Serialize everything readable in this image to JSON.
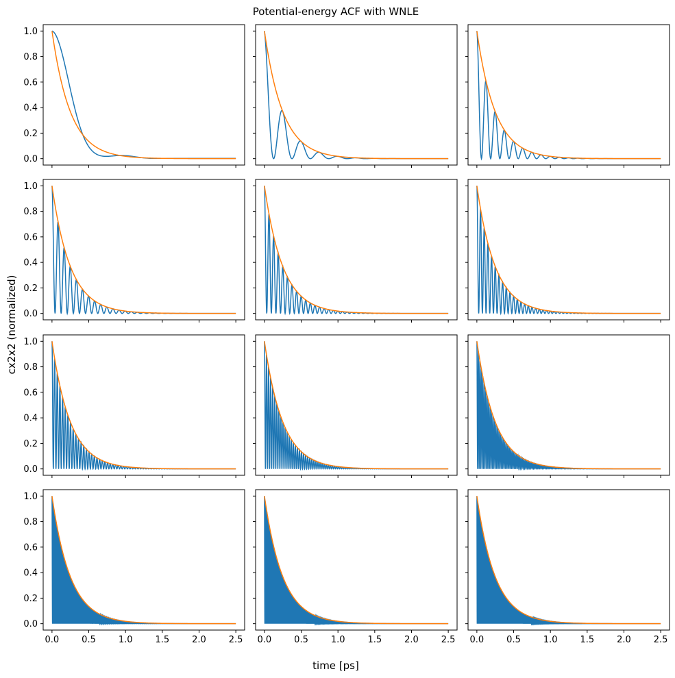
{
  "title": "Potential-energy ACF with WNLE",
  "xlabel": "time [ps]",
  "ylabel": "cx2x2 (normalized)",
  "colors": {
    "series1": "#1f77b4",
    "series2": "#ff7f0e"
  },
  "chart_data": {
    "type": "line",
    "layout": {
      "rows": 4,
      "cols": 3,
      "sharex": true,
      "sharey": true
    },
    "xlim": [
      -0.12,
      2.62
    ],
    "ylim": [
      -0.05,
      1.05
    ],
    "xticks": [
      0.0,
      0.5,
      1.0,
      1.5,
      2.0,
      2.5
    ],
    "xtick_labels": [
      "0.0",
      "0.5",
      "1.0",
      "1.5",
      "2.0",
      "2.5"
    ],
    "yticks": [
      0.0,
      0.2,
      0.4,
      0.6,
      0.8,
      1.0
    ],
    "ytick_labels": [
      "0.0",
      "0.2",
      "0.4",
      "0.6",
      "0.8",
      "1.0"
    ],
    "x_range": [
      0.0,
      2.5
    ],
    "grid": false,
    "legend": "none",
    "series_envelope": {
      "decay_time_ps": 0.25,
      "formula": "exp(-t/0.25)"
    },
    "subplots": [
      {
        "row": 0,
        "col": 0,
        "oscillation_period_ps": 1.1
      },
      {
        "row": 0,
        "col": 1,
        "oscillation_period_ps": 0.25
      },
      {
        "row": 0,
        "col": 2,
        "oscillation_period_ps": 0.125
      },
      {
        "row": 1,
        "col": 0,
        "oscillation_period_ps": 0.083
      },
      {
        "row": 1,
        "col": 1,
        "oscillation_period_ps": 0.0625
      },
      {
        "row": 1,
        "col": 2,
        "oscillation_period_ps": 0.05
      },
      {
        "row": 2,
        "col": 0,
        "oscillation_period_ps": 0.036
      },
      {
        "row": 2,
        "col": 1,
        "oscillation_period_ps": 0.028
      },
      {
        "row": 2,
        "col": 2,
        "oscillation_period_ps": 0.02
      },
      {
        "row": 3,
        "col": 0,
        "oscillation_period_ps": 0.014
      },
      {
        "row": 3,
        "col": 1,
        "oscillation_period_ps": 0.011
      },
      {
        "row": 3,
        "col": 2,
        "oscillation_period_ps": 0.009
      }
    ]
  }
}
